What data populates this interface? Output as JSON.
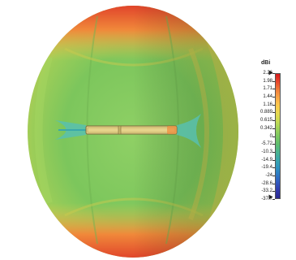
{
  "legend": {
    "unit": "dBi",
    "ticks": [
      "2.26",
      "1.98",
      "1.71",
      "1.44",
      "1.16",
      "0.889",
      "0.615",
      "0.342",
      "0",
      "-5.72",
      "-10.3",
      "-14.9",
      "-19.4",
      "-24",
      "-28.6",
      "-33.2",
      "-37.7"
    ],
    "colors": [
      "#d7191c",
      "#e8462c",
      "#f07c3a",
      "#f7a446",
      "#fdc84d",
      "#e9d950",
      "#c9db52",
      "#9fd35a",
      "#7cc860",
      "#5fbf6d",
      "#4bb58f",
      "#3aa8ab",
      "#2e94c0",
      "#2d78c4",
      "#3158bf",
      "#3038aa",
      "#2b2a8f"
    ]
  },
  "pattern": {
    "colors": {
      "cap_red": "#e03e28",
      "orange": "#f08a3a",
      "yellow": "#d8d24e",
      "green": "#78c25a",
      "deep_green": "#5cae48",
      "cyan": "#58bfae",
      "dipole_fill": "#e6d28a"
    }
  }
}
